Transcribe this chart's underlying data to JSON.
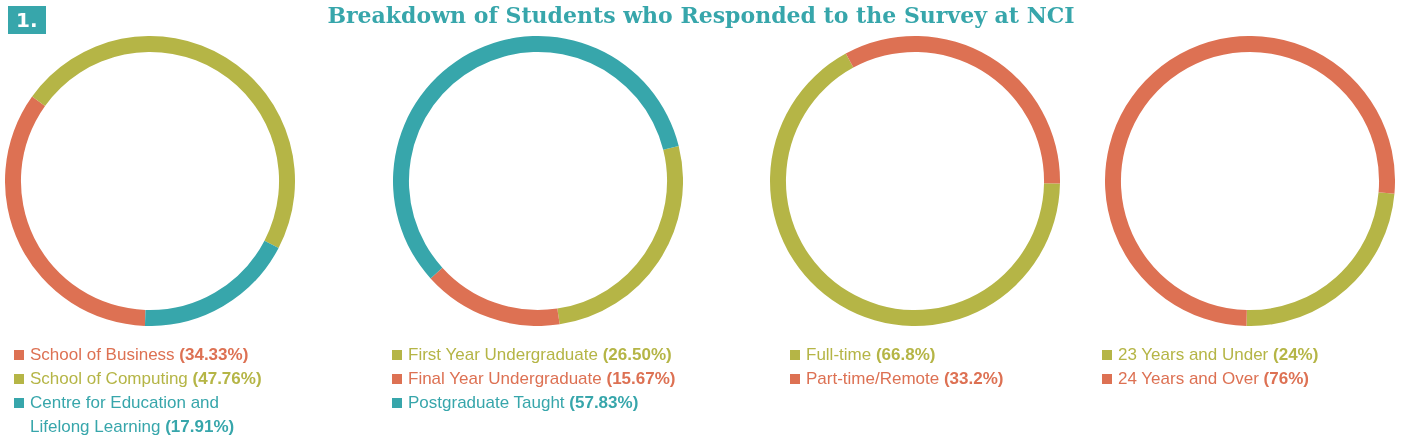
{
  "chart_data": [
    {
      "type": "donut",
      "title": "Breakdown of Students who Responded to the Survey at NCI",
      "annotations": [
        "1."
      ],
      "categories": [
        "School of Business",
        "School of Computing",
        "Centre for Education and Lifelong Learning"
      ],
      "values": [
        34.33,
        47.76,
        17.91
      ],
      "value_labels": [
        "(34.33%)",
        "(47.76%)",
        "(17.91%)"
      ],
      "colors": [
        "#dd7153",
        "#b5b546",
        "#37a6ab"
      ],
      "legend": "bottom"
    },
    {
      "type": "donut",
      "categories": [
        "First Year Undergraduate",
        "Final Year Undergraduate",
        "Postgraduate Taught"
      ],
      "values": [
        26.5,
        15.67,
        57.83
      ],
      "value_labels": [
        "(26.50%)",
        "(15.67%)",
        "(57.83%)"
      ],
      "colors": [
        "#b5b546",
        "#dd7153",
        "#37a6ab"
      ],
      "legend": "bottom"
    },
    {
      "type": "donut",
      "categories": [
        "Full-time",
        "Part-time/Remote"
      ],
      "values": [
        66.8,
        33.2
      ],
      "value_labels": [
        "(66.8%)",
        "(33.2%)"
      ],
      "colors": [
        "#b5b546",
        "#dd7153"
      ],
      "legend": "bottom"
    },
    {
      "type": "donut",
      "categories": [
        "23 Years and Under",
        "24 Years and Over"
      ],
      "values": [
        24,
        76
      ],
      "value_labels": [
        "(24%)",
        "(76%)"
      ],
      "colors": [
        "#b5b546",
        "#dd7153"
      ],
      "legend": "bottom"
    }
  ]
}
